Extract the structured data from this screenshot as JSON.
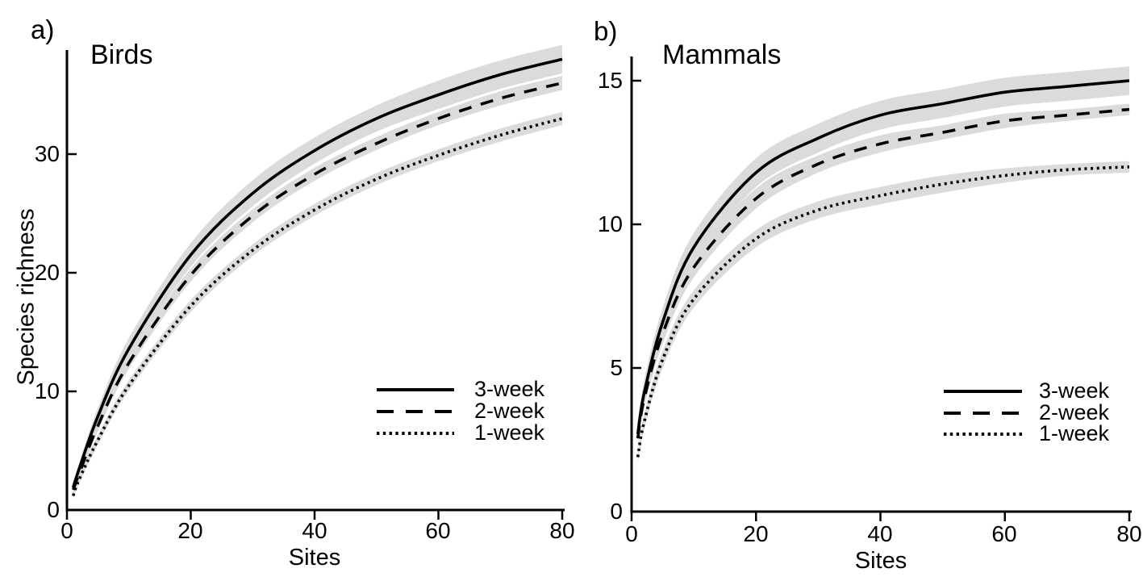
{
  "colors": {
    "line": "#000000",
    "confidence_band": "#dbdbdb",
    "background": "#ffffff",
    "text": "#000000"
  },
  "chart_data": [
    {
      "type": "line",
      "panel_label": "a)",
      "title": "Birds",
      "xlabel": "Sites",
      "ylabel": "Species richness",
      "xlim": [
        0,
        80
      ],
      "ylim": [
        0,
        39
      ],
      "x_tick_values": [
        0,
        20,
        40,
        60,
        80
      ],
      "y_tick_values": [
        0,
        10,
        20,
        30
      ],
      "grid": false,
      "legend_position": "lower right",
      "confidence_bands": true,
      "x": [
        1,
        2,
        5,
        10,
        20,
        30,
        40,
        50,
        60,
        70,
        80
      ],
      "series": [
        {
          "name": "3-week",
          "line_style": "solid",
          "values": [
            1.9,
            3.5,
            7.9,
            13.6,
            21.5,
            26.7,
            30.3,
            33.0,
            35.0,
            36.7,
            38.0
          ],
          "ci_half_width": [
            0.4,
            0.5,
            0.7,
            0.9,
            1.0,
            1.1,
            1.1,
            1.1,
            1.2,
            1.2,
            1.2
          ]
        },
        {
          "name": "2-week",
          "line_style": "dashed",
          "values": [
            1.7,
            3.1,
            7.1,
            12.4,
            19.8,
            24.8,
            28.3,
            30.9,
            33.0,
            34.7,
            36.0
          ],
          "ci_half_width": [
            0.3,
            0.35,
            0.45,
            0.5,
            0.55,
            0.55,
            0.55,
            0.55,
            0.55,
            0.6,
            0.6
          ]
        },
        {
          "name": "1-week",
          "line_style": "dotted",
          "values": [
            1.2,
            2.6,
            5.9,
            10.5,
            17.2,
            21.9,
            25.3,
            27.9,
            29.9,
            31.6,
            33.0
          ],
          "ci_half_width": [
            0.3,
            0.35,
            0.4,
            0.45,
            0.5,
            0.5,
            0.5,
            0.5,
            0.5,
            0.55,
            0.55
          ]
        }
      ]
    },
    {
      "type": "line",
      "panel_label": "b)",
      "title": "Mammals",
      "xlabel": "Sites",
      "xlim": [
        0,
        80
      ],
      "ylim": [
        0,
        15.8
      ],
      "x_tick_values": [
        0,
        20,
        40,
        60,
        80
      ],
      "y_tick_values": [
        0,
        5,
        10,
        15
      ],
      "grid": false,
      "legend_position": "lower right",
      "confidence_bands": true,
      "x": [
        1,
        2,
        5,
        10,
        20,
        30,
        40,
        50,
        60,
        70,
        80
      ],
      "series": [
        {
          "name": "3-week",
          "line_style": "solid",
          "values": [
            2.7,
            4.1,
            6.6,
            9.2,
            11.8,
            13.0,
            13.8,
            14.2,
            14.6,
            14.8,
            15.0
          ],
          "ci_half_width": [
            0.35,
            0.45,
            0.5,
            0.5,
            0.5,
            0.5,
            0.5,
            0.5,
            0.5,
            0.5,
            0.5
          ]
        },
        {
          "name": "2-week",
          "line_style": "dashed",
          "values": [
            2.55,
            3.9,
            6.2,
            8.5,
            10.9,
            12.1,
            12.8,
            13.2,
            13.6,
            13.8,
            14.0
          ],
          "ci_half_width": [
            0.25,
            0.3,
            0.35,
            0.35,
            0.35,
            0.3,
            0.3,
            0.25,
            0.25,
            0.2,
            0.2
          ]
        },
        {
          "name": "1-week",
          "line_style": "dotted",
          "values": [
            1.9,
            3.1,
            5.3,
            7.4,
            9.5,
            10.5,
            11.0,
            11.4,
            11.7,
            11.9,
            12.0
          ],
          "ci_half_width": [
            0.2,
            0.25,
            0.3,
            0.3,
            0.3,
            0.3,
            0.3,
            0.3,
            0.25,
            0.2,
            0.2
          ]
        }
      ]
    }
  ]
}
